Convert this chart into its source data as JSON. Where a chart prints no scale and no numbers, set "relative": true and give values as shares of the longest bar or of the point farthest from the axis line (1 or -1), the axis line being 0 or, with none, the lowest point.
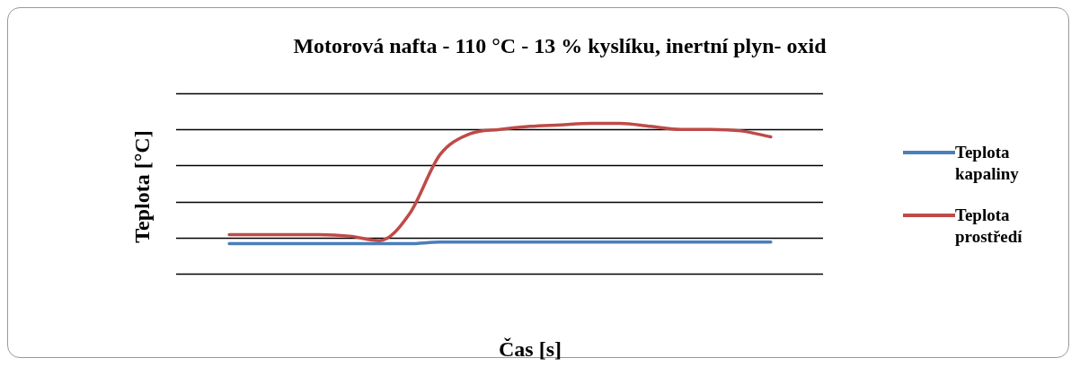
{
  "chart_data": {
    "type": "line",
    "title": "Motorová nafta - 110 °C - 13 % kyslíku, inertní plyn- oxid",
    "xlabel": "Čas [s]",
    "ylabel": "Teplota [°C]",
    "relative": true,
    "grid": "y",
    "legend": "right",
    "marker": "none",
    "line_style": "solid",
    "categories": [
      null,
      null,
      null,
      null,
      null,
      null,
      null,
      null,
      null,
      null,
      null,
      null,
      null,
      null,
      null,
      null,
      null,
      null,
      null
    ],
    "series": [
      {
        "name": "Teplota kapaliny",
        "color": "#4a7ebb",
        "values": [
          0.2,
          0.2,
          0.2,
          0.2,
          0.2,
          0.2,
          0.2,
          0.21,
          0.21,
          0.21,
          0.21,
          0.21,
          0.21,
          0.21,
          0.21,
          0.21,
          0.21,
          0.21,
          0.21
        ]
      },
      {
        "name": "Teplota prostředí",
        "color": "#be4b48",
        "values": [
          0.26,
          0.26,
          0.26,
          0.26,
          0.25,
          0.22,
          0.4,
          0.79,
          0.93,
          0.96,
          0.98,
          0.99,
          1,
          1,
          0.98,
          0.96,
          0.96,
          0.95,
          0.91
        ]
      }
    ]
  }
}
